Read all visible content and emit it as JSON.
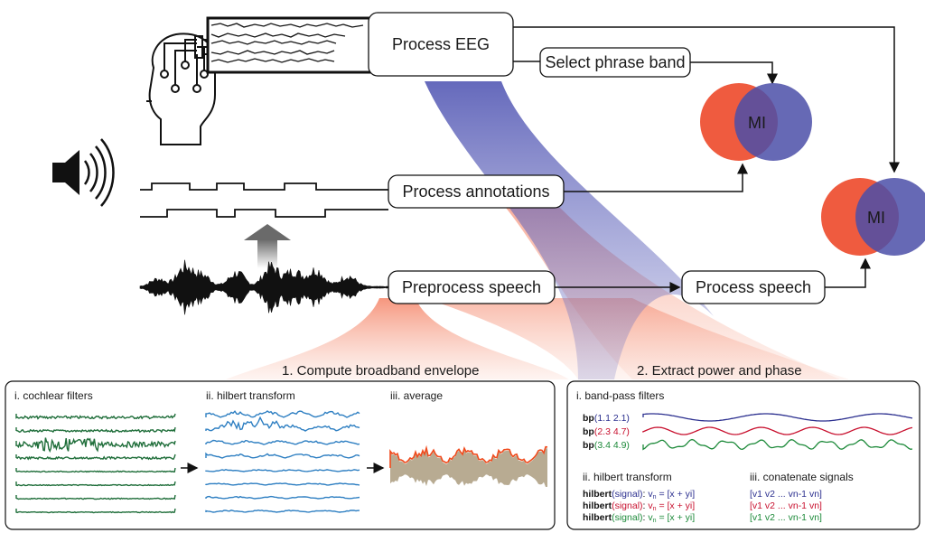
{
  "pipeline": {
    "process_eeg": "Process EEG",
    "select_phase_band": "Select phrase band",
    "process_annotations": "Process annotations",
    "preprocess_speech": "Preprocess speech",
    "process_speech": "Process speech",
    "mi_top": "MI",
    "mi_right": "MI"
  },
  "section1": {
    "title": "1. Compute broadband envelope",
    "step_i": "i. cochlear filters",
    "step_ii": "ii. hilbert transform",
    "step_iii": "iii. average"
  },
  "section2": {
    "title": "2. Extract power and phase",
    "step_i": "i. band-pass filters",
    "step_ii": "ii. hilbert transform",
    "step_iii": "iii. conatenate signals",
    "bp_func": "bp",
    "bp_rows": [
      {
        "args": "(1.1 2.1)",
        "color": "#2b2f8f"
      },
      {
        "args": "(2.3 4.7)",
        "color": "#c8102e"
      },
      {
        "args": "(3.4 4.9)",
        "color": "#1d8a3a"
      }
    ],
    "hilbert_func": "hilbert",
    "hilbert_arg": "(signal)",
    "hilbert_colon": ":",
    "hilbert_v": "v",
    "hilbert_sub": "n",
    "hilbert_eq": " = [x + yi]",
    "concat_rows": [
      "[v1 v2 ... vn-1 vn]",
      "[v1 v2 ... vn-1 vn]",
      "[v1 v2 ... vn-1 vn]"
    ]
  },
  "colors": {
    "eeg_ribbon": "#5a5fb8",
    "speech_ribbon": "#f26b4f",
    "mi_red": "#ef5b3f",
    "mi_blue": "#4b4fa8",
    "cochlear": "#1f6e3a",
    "hilbert_blue": "#2e7fc2",
    "average_orange": "#f04a1c",
    "average_fill": "#b8ab92"
  },
  "icons": [
    "eeg-cap-head-icon",
    "speaker-icon",
    "upward-arrow-icon"
  ]
}
